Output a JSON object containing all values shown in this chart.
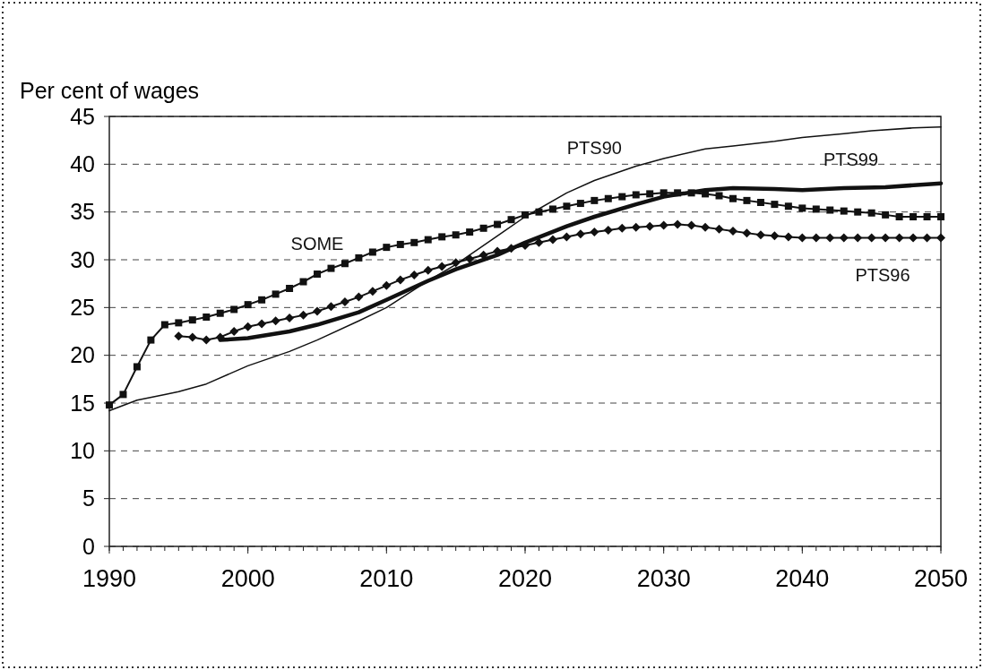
{
  "chart_data": {
    "type": "line",
    "ylabel": "Per cent of wages",
    "xlim": [
      1990,
      2050
    ],
    "xticks": [
      1990,
      2000,
      2010,
      2020,
      2030,
      2040,
      2050
    ],
    "ylim": [
      0,
      45
    ],
    "yticks": [
      0,
      5,
      10,
      15,
      20,
      25,
      30,
      35,
      40,
      45
    ],
    "grid": "y",
    "line_style": "solid",
    "series": [
      {
        "name": "SOME",
        "color": "#111111",
        "marker": "square",
        "x": [
          1990,
          1991,
          1992,
          1993,
          1994,
          1995,
          1996,
          1997,
          1998,
          1999,
          2000,
          2001,
          2002,
          2003,
          2004,
          2005,
          2006,
          2007,
          2008,
          2009,
          2010,
          2011,
          2012,
          2013,
          2014,
          2015,
          2016,
          2017,
          2018,
          2019,
          2020,
          2021,
          2022,
          2023,
          2024,
          2025,
          2026,
          2027,
          2028,
          2029,
          2030,
          2031,
          2032,
          2033,
          2034,
          2035,
          2036,
          2037,
          2038,
          2039,
          2040,
          2041,
          2042,
          2043,
          2044,
          2045,
          2046,
          2047,
          2048,
          2049,
          2050
        ],
        "values": [
          14.8,
          15.9,
          18.8,
          21.6,
          23.2,
          23.4,
          23.7,
          24.0,
          24.4,
          24.8,
          25.3,
          25.8,
          26.4,
          27.0,
          27.7,
          28.5,
          29.1,
          29.6,
          30.2,
          30.8,
          31.3,
          31.6,
          31.8,
          32.1,
          32.4,
          32.6,
          32.9,
          33.3,
          33.7,
          34.2,
          34.7,
          35.0,
          35.3,
          35.6,
          35.9,
          36.2,
          36.4,
          36.6,
          36.8,
          36.9,
          37.0,
          37.0,
          37.0,
          36.9,
          36.7,
          36.4,
          36.2,
          36.0,
          35.8,
          35.6,
          35.4,
          35.3,
          35.2,
          35.1,
          35.0,
          34.9,
          34.7,
          34.5,
          34.5,
          34.5,
          34.5
        ]
      },
      {
        "name": "PTS90",
        "color": "#111111",
        "marker": "none",
        "x": [
          1990,
          1992,
          1994,
          1995,
          1997,
          2000,
          2003,
          2005,
          2008,
          2010,
          2013,
          2015,
          2018,
          2020,
          2023,
          2025,
          2028,
          2030,
          2033,
          2035,
          2038,
          2040,
          2043,
          2045,
          2048,
          2050
        ],
        "values": [
          14.2,
          15.3,
          15.9,
          16.2,
          17.0,
          18.9,
          20.4,
          21.6,
          23.6,
          25.0,
          27.8,
          29.5,
          32.5,
          34.5,
          37.0,
          38.3,
          39.8,
          40.6,
          41.6,
          41.9,
          42.4,
          42.8,
          43.2,
          43.5,
          43.8,
          43.9
        ]
      },
      {
        "name": "PTS99",
        "color": "#111111",
        "marker": "none",
        "x": [
          1998,
          2000,
          2003,
          2005,
          2008,
          2010,
          2013,
          2015,
          2018,
          2020,
          2023,
          2025,
          2028,
          2030,
          2033,
          2035,
          2038,
          2040,
          2043,
          2046,
          2050
        ],
        "values": [
          21.6,
          21.8,
          22.5,
          23.2,
          24.5,
          25.8,
          27.8,
          29.0,
          30.5,
          31.8,
          33.5,
          34.5,
          35.8,
          36.6,
          37.3,
          37.5,
          37.4,
          37.3,
          37.5,
          37.6,
          38.0
        ]
      },
      {
        "name": "PTS96",
        "color": "#111111",
        "marker": "diamond",
        "x": [
          1995,
          1996,
          1997,
          1998,
          1999,
          2000,
          2001,
          2002,
          2003,
          2004,
          2005,
          2006,
          2007,
          2008,
          2009,
          2010,
          2011,
          2012,
          2013,
          2014,
          2015,
          2016,
          2017,
          2018,
          2019,
          2020,
          2021,
          2022,
          2023,
          2024,
          2025,
          2026,
          2027,
          2028,
          2029,
          2030,
          2031,
          2032,
          2033,
          2034,
          2035,
          2036,
          2037,
          2038,
          2039,
          2040,
          2041,
          2042,
          2043,
          2044,
          2045,
          2046,
          2047,
          2048,
          2049,
          2050
        ],
        "values": [
          22.0,
          21.9,
          21.6,
          21.9,
          22.5,
          23.0,
          23.3,
          23.6,
          23.9,
          24.2,
          24.6,
          25.1,
          25.6,
          26.1,
          26.7,
          27.3,
          27.9,
          28.4,
          28.9,
          29.3,
          29.7,
          30.1,
          30.5,
          30.9,
          31.2,
          31.5,
          31.8,
          32.1,
          32.4,
          32.7,
          32.9,
          33.1,
          33.3,
          33.4,
          33.5,
          33.6,
          33.7,
          33.6,
          33.4,
          33.2,
          33.0,
          32.8,
          32.6,
          32.5,
          32.4,
          32.3,
          32.3,
          32.3,
          32.3,
          32.3,
          32.3,
          32.3,
          32.3,
          32.3,
          32.3,
          32.3
        ]
      }
    ]
  }
}
